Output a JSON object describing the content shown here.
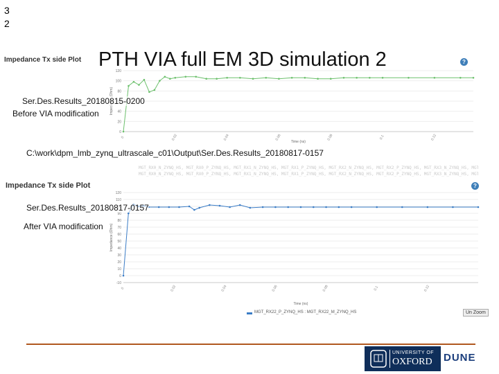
{
  "slide": {
    "number": "3 2",
    "title": "PTH VIA  full EM 3D simulation 2",
    "path_label": "C:\\work\\dpm_lmb_zynq_ultrascale_c01\\Output\\Ser.Des.Results_20180817-0157"
  },
  "plot_top": {
    "heading": "Impedance Tx side Plot",
    "result_label": "Ser.Des.Results_20180815-0200",
    "description": "Before VIA modification",
    "y_axis_label": "Impedance (Ohm)",
    "x_axis_label": "Time (ns)",
    "y_ticks": [
      "120",
      "100",
      "80",
      "60",
      "40",
      "20",
      "0"
    ],
    "x_ticks": [
      "0",
      "0.02",
      "0.04",
      "0.06",
      "0.08",
      "0.1",
      "0.12"
    ],
    "series_color": "#6cc06c",
    "legend_text": "MGT_RX0_N_ZYNQ_HS, MGT_RX0_P_ZYNQ_HS, MGT_RX1_N_ZYNQ_HS, MGT_RX1_P_ZYNQ_HS, MGT_RX2_N_ZYNQ_HS, MGT_RX2_P_ZYNQ_HS, MGT_RX3_N_ZYNQ_HS, MGT_RX3_P_ZYNQ_HS"
  },
  "plot_bottom": {
    "heading": "Impedance Tx side Plot",
    "result_label": "Ser.Des.Results_20180817-0157",
    "description": "After VIA modification",
    "y_axis_label": "Impedance (Ohm)",
    "x_axis_label": "Time (ns)",
    "y_ticks": [
      "120",
      "110",
      "100",
      "90",
      "80",
      "70",
      "60",
      "50",
      "40",
      "30",
      "20",
      "10",
      "0",
      "-10"
    ],
    "x_ticks": [
      "0",
      "0.02",
      "0.04",
      "0.06",
      "0.08",
      "0.1",
      "0.12"
    ],
    "series_color": "#3a7cc6",
    "series_name": "MGT_RX22_P_ZYNQ_HS : MGT_RX22_M_ZYNQ_HS",
    "zoom_button": "Un Zoom",
    "legend_text": "MGT_RX0_N_ZYNQ_HS, MGT_RX0_P_ZYNQ_HS, MGT_RX1_N_ZYNQ_HS, MGT_RX1_P_ZYNQ_HS, MGT_RX2_N_ZYNQ_HS, MGT_RX2_P_ZYNQ_HS, MGT_RX3_N_ZYNQ_HS, MGT_RX3_P_ZYNQ_HS"
  },
  "logos": {
    "university": "UNIVERSITY OF",
    "oxford": "OXFORD",
    "dune": "DUNE"
  },
  "chart_data": [
    {
      "type": "line",
      "title": "Impedance Tx side Plot",
      "xlabel": "Time (ns)",
      "ylabel": "Impedance (Ohm)",
      "ylim": [
        0,
        120
      ],
      "x": [
        0,
        0.002,
        0.004,
        0.006,
        0.008,
        0.01,
        0.012,
        0.014,
        0.016,
        0.018,
        0.02,
        0.024,
        0.028,
        0.032,
        0.036,
        0.04,
        0.045,
        0.05,
        0.055,
        0.06,
        0.065,
        0.07,
        0.075,
        0.08,
        0.085,
        0.09,
        0.095,
        0.1,
        0.11,
        0.12,
        0.13,
        0.135
      ],
      "series": [
        {
          "values": [
            0,
            90,
            98,
            92,
            102,
            78,
            82,
            100,
            108,
            104,
            106,
            108,
            108,
            104,
            104,
            106,
            106,
            104,
            106,
            104,
            106,
            106,
            104,
            104,
            106,
            106,
            106,
            106,
            106,
            106,
            106,
            106
          ]
        }
      ]
    },
    {
      "type": "line",
      "title": "Impedance Tx side Plot",
      "xlabel": "Time (ns)",
      "ylabel": "Impedance (Ohm)",
      "ylim": [
        -10,
        120
      ],
      "x": [
        0,
        0.002,
        0.004,
        0.006,
        0.008,
        0.01,
        0.014,
        0.018,
        0.022,
        0.026,
        0.028,
        0.03,
        0.034,
        0.038,
        0.042,
        0.046,
        0.05,
        0.055,
        0.06,
        0.065,
        0.07,
        0.075,
        0.08,
        0.085,
        0.09,
        0.1,
        0.11,
        0.12,
        0.13,
        0.14
      ],
      "series": [
        {
          "name": "MGT_RX22_P_ZYNQ_HS : MGT_RX22_M_ZYNQ_HS",
          "values": [
            0,
            90,
            103,
            100,
            101,
            99,
            99,
            99,
            99,
            100,
            95,
            98,
            102,
            101,
            99,
            102,
            98,
            99,
            99,
            99,
            99,
            99,
            99,
            99,
            99,
            99,
            99,
            99,
            99,
            99
          ]
        }
      ]
    }
  ]
}
